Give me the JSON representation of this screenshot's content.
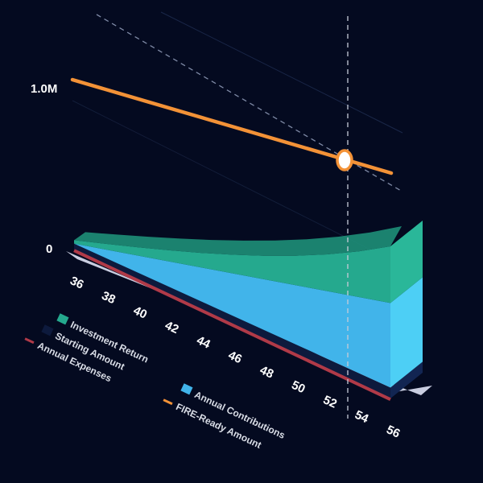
{
  "chart_data": {
    "type": "area",
    "x": [
      36,
      38,
      40,
      42,
      44,
      46,
      48,
      50,
      52,
      54,
      56
    ],
    "x_tick_labels": [
      "36",
      "38",
      "40",
      "42",
      "44",
      "46",
      "48",
      "50",
      "52",
      "54",
      "56"
    ],
    "y_tick_labels": [
      "0",
      "1.0M"
    ],
    "ylim": [
      0,
      1000000
    ],
    "series": [
      {
        "name": "Starting Amount",
        "kind": "stacked-area",
        "color": "#0d1a3d",
        "values": [
          35000,
          38000,
          41000,
          44000,
          47000,
          50000,
          53000,
          56000,
          59000,
          62000,
          65000
        ]
      },
      {
        "name": "Annual Contributions",
        "kind": "stacked-area",
        "color": "#41b4ea",
        "values": [
          0,
          50000,
          100000,
          150000,
          200000,
          250000,
          300000,
          350000,
          400000,
          450000,
          500000
        ]
      },
      {
        "name": "Investment Return",
        "kind": "stacked-area",
        "color": "#25a98e",
        "values": [
          20000,
          34000,
          49000,
          66000,
          86000,
          110000,
          139000,
          174000,
          217000,
          270000,
          335000
        ]
      },
      {
        "name": "Annual Expenses",
        "kind": "line",
        "color": "#b03a48",
        "values": [
          4000,
          4000,
          4000,
          4000,
          4000,
          4000,
          4000,
          4000,
          4000,
          4000,
          4000
        ]
      },
      {
        "name": "FIRE-Ready Amount",
        "kind": "line",
        "color": "#f39237",
        "values": [
          1000000,
          970000,
          940000,
          910000,
          880000,
          850000,
          820000,
          790000,
          760000,
          730000,
          700000
        ]
      }
    ],
    "highlight_x": 54.4,
    "legend_position": "bottom-left",
    "grid": false
  },
  "legend": [
    {
      "label": "Investment Return",
      "color": "#25a98e"
    },
    {
      "label": "Starting Amount",
      "color": "#0d1a3d"
    },
    {
      "label": "Annual Expenses",
      "color": "#b03a48"
    },
    {
      "label": "Annual Contributions",
      "color": "#41b4ea"
    },
    {
      "label": "FIRE-Ready Amount",
      "color": "#f39237"
    }
  ]
}
